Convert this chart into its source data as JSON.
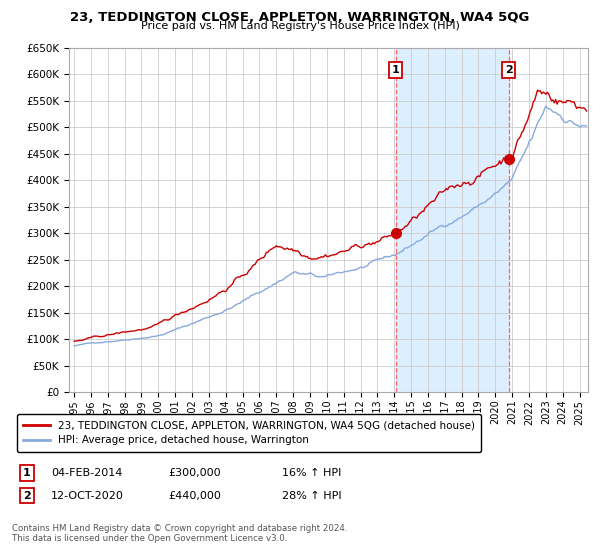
{
  "title": "23, TEDDINGTON CLOSE, APPLETON, WARRINGTON, WA4 5QG",
  "subtitle": "Price paid vs. HM Land Registry's House Price Index (HPI)",
  "legend_property": "23, TEDDINGTON CLOSE, APPLETON, WARRINGTON, WA4 5QG (detached house)",
  "legend_hpi": "HPI: Average price, detached house, Warrington",
  "event1_date": "04-FEB-2014",
  "event1_price": "£300,000",
  "event1_hpi": "16% ↑ HPI",
  "event1_label": "1",
  "event2_date": "12-OCT-2020",
  "event2_price": "£440,000",
  "event2_hpi": "28% ↑ HPI",
  "event2_label": "2",
  "footer": "Contains HM Land Registry data © Crown copyright and database right 2024.\nThis data is licensed under the Open Government Licence v3.0.",
  "property_color": "#cc0000",
  "hpi_color": "#88aadd",
  "background_color": "#ffffff",
  "grid_color": "#cccccc",
  "shade_color": "#ddeeff",
  "event_line_color": "#ff6666",
  "ylim": [
    0,
    650000
  ],
  "yticks": [
    0,
    50000,
    100000,
    150000,
    200000,
    250000,
    300000,
    350000,
    400000,
    450000,
    500000,
    550000,
    600000,
    650000
  ],
  "xlim_start": 1994.7,
  "xlim_end": 2025.5,
  "event1_x": 2014.09,
  "event2_x": 2020.79,
  "seed": 42
}
